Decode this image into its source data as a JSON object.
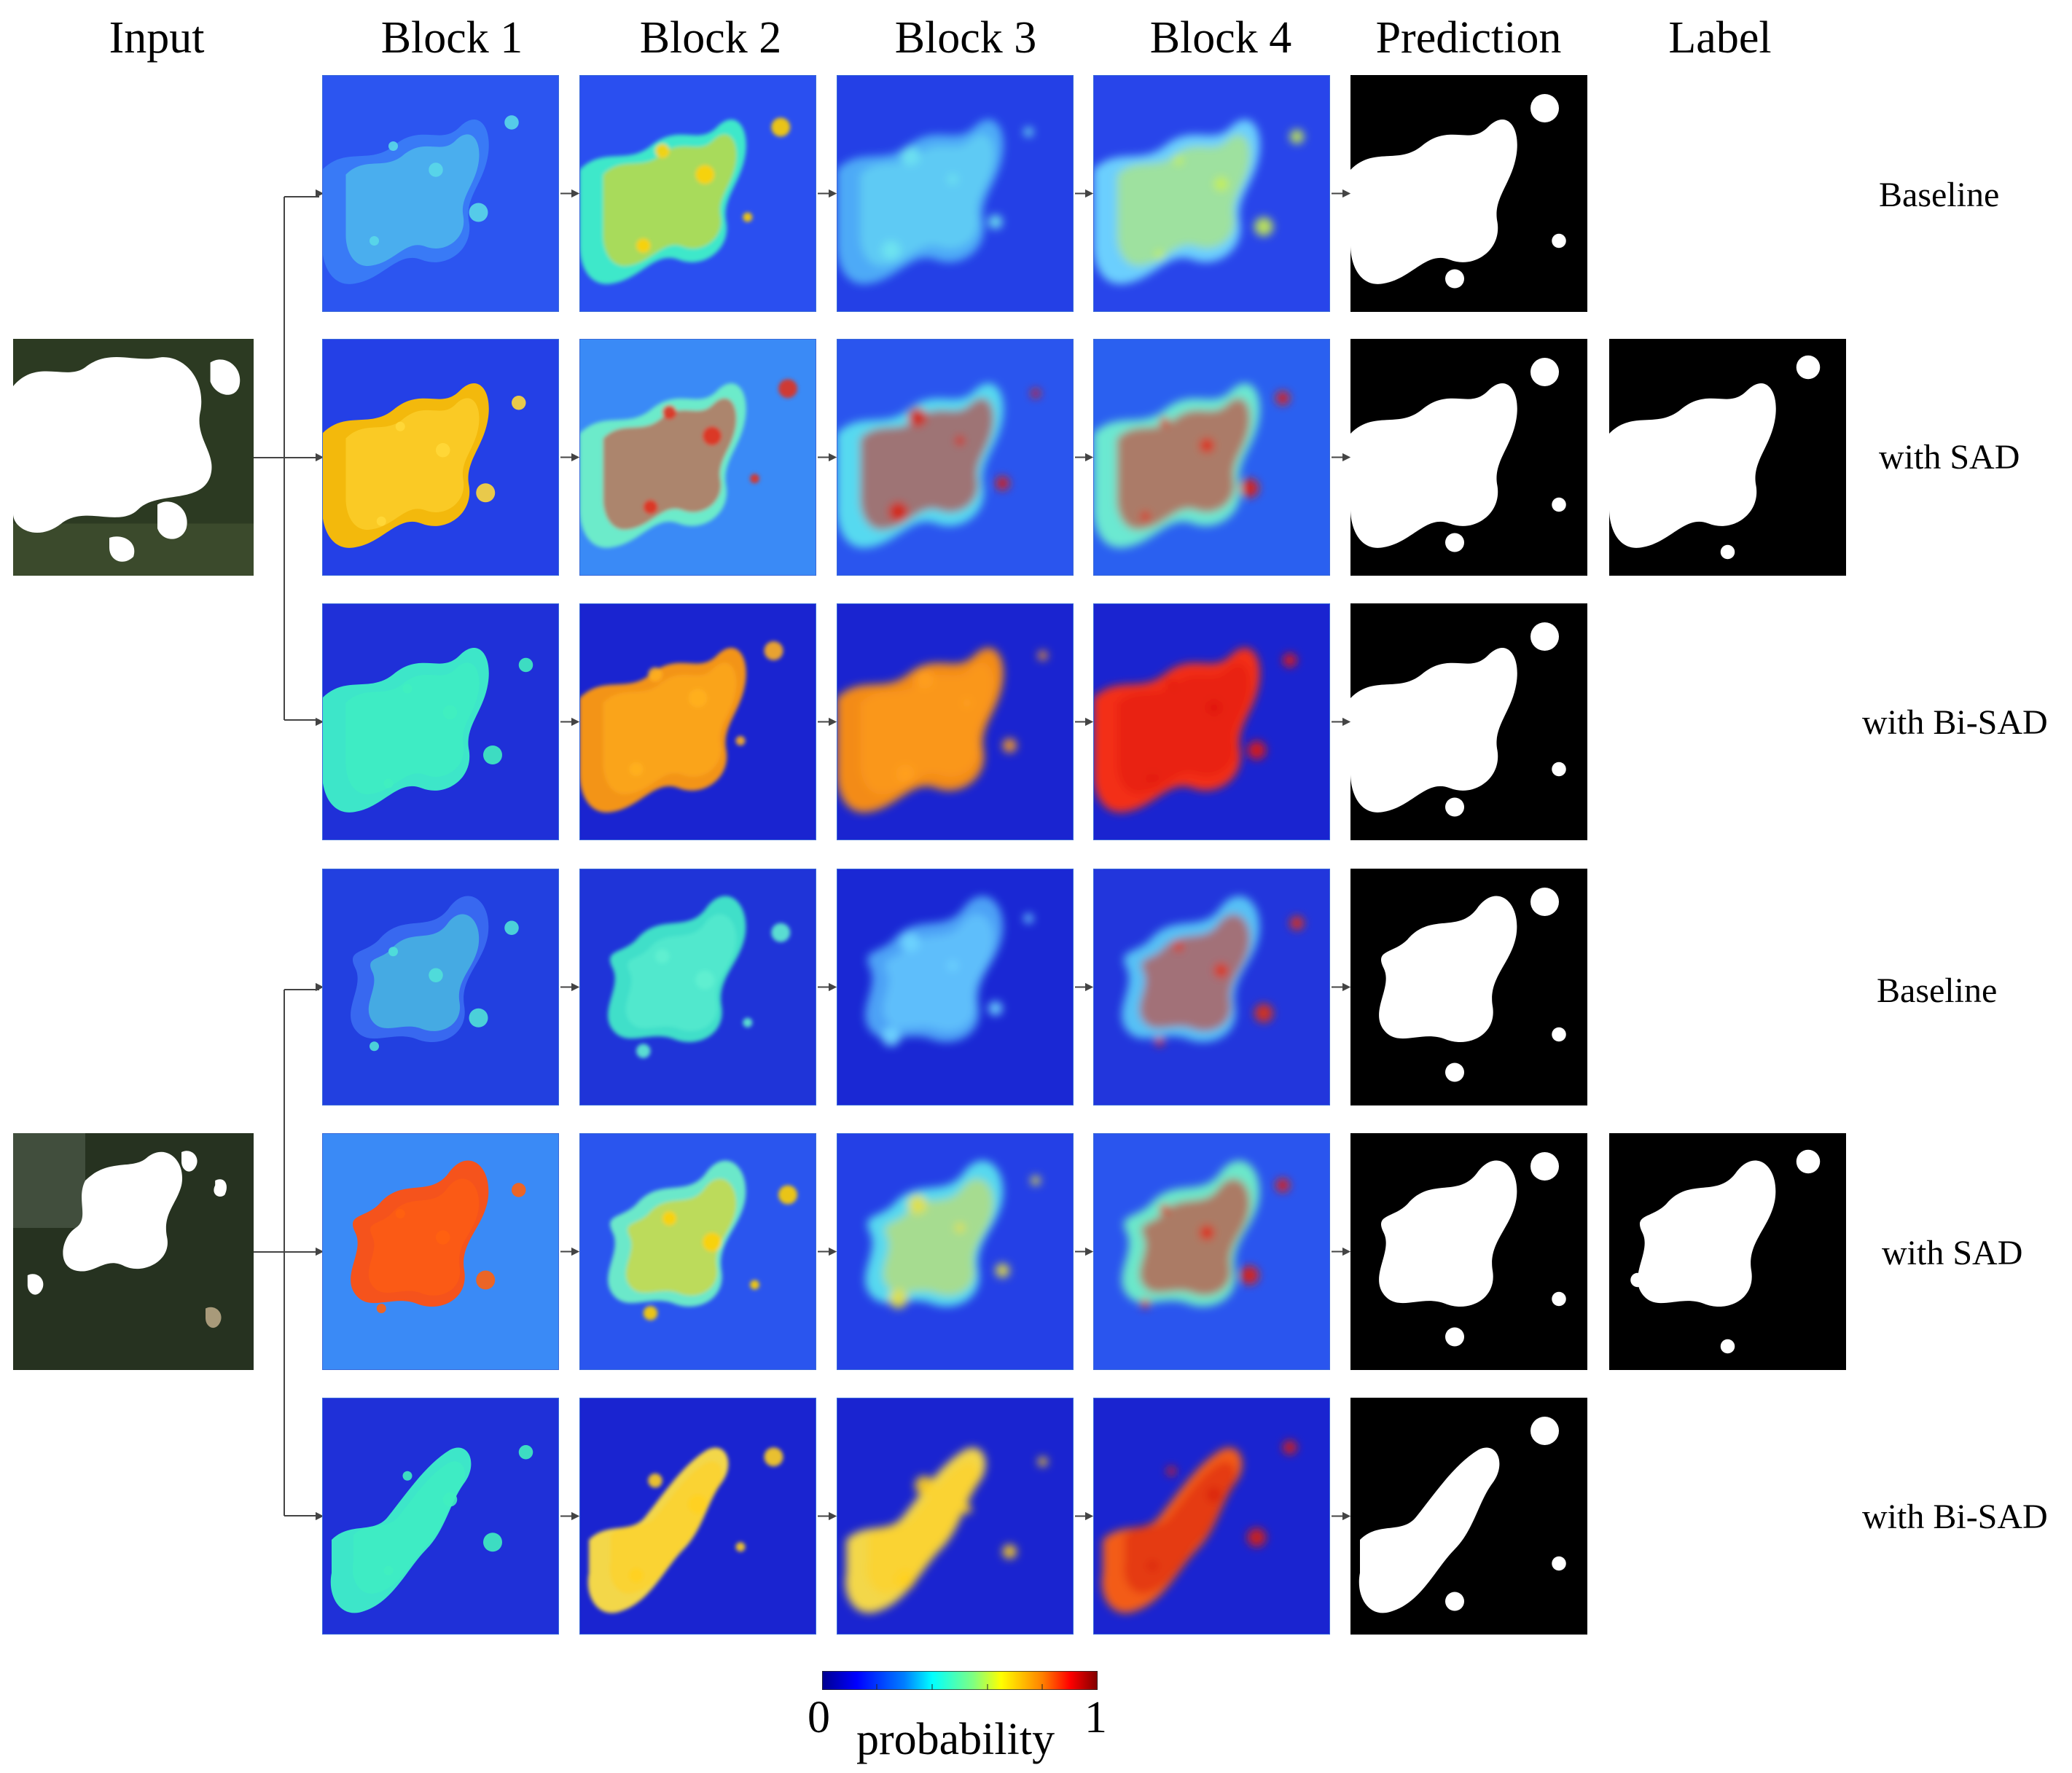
{
  "columns": {
    "input": "Input",
    "block1": "Block 1",
    "block2": "Block 2",
    "block3": "Block 3",
    "block4": "Block 4",
    "prediction": "Prediction",
    "label": "Label"
  },
  "rows": [
    {
      "label": "Baseline"
    },
    {
      "label": "with SAD"
    },
    {
      "label": "with Bi-SAD"
    },
    {
      "label": "Baseline"
    },
    {
      "label": "with SAD"
    },
    {
      "label": "with Bi-SAD"
    }
  ],
  "colorbar": {
    "min": "0",
    "max": "1",
    "title": "probability",
    "colormap": [
      "#00008f",
      "#0000ff",
      "#0080ff",
      "#00ffff",
      "#80ff80",
      "#ffff00",
      "#ff8000",
      "#ff0000",
      "#800000"
    ]
  },
  "colors": {
    "low": "#1530d8",
    "mid": "#3fd6c8",
    "high": "#ffb000",
    "peak": "#d81b0b",
    "ground": "#2c3a22"
  }
}
